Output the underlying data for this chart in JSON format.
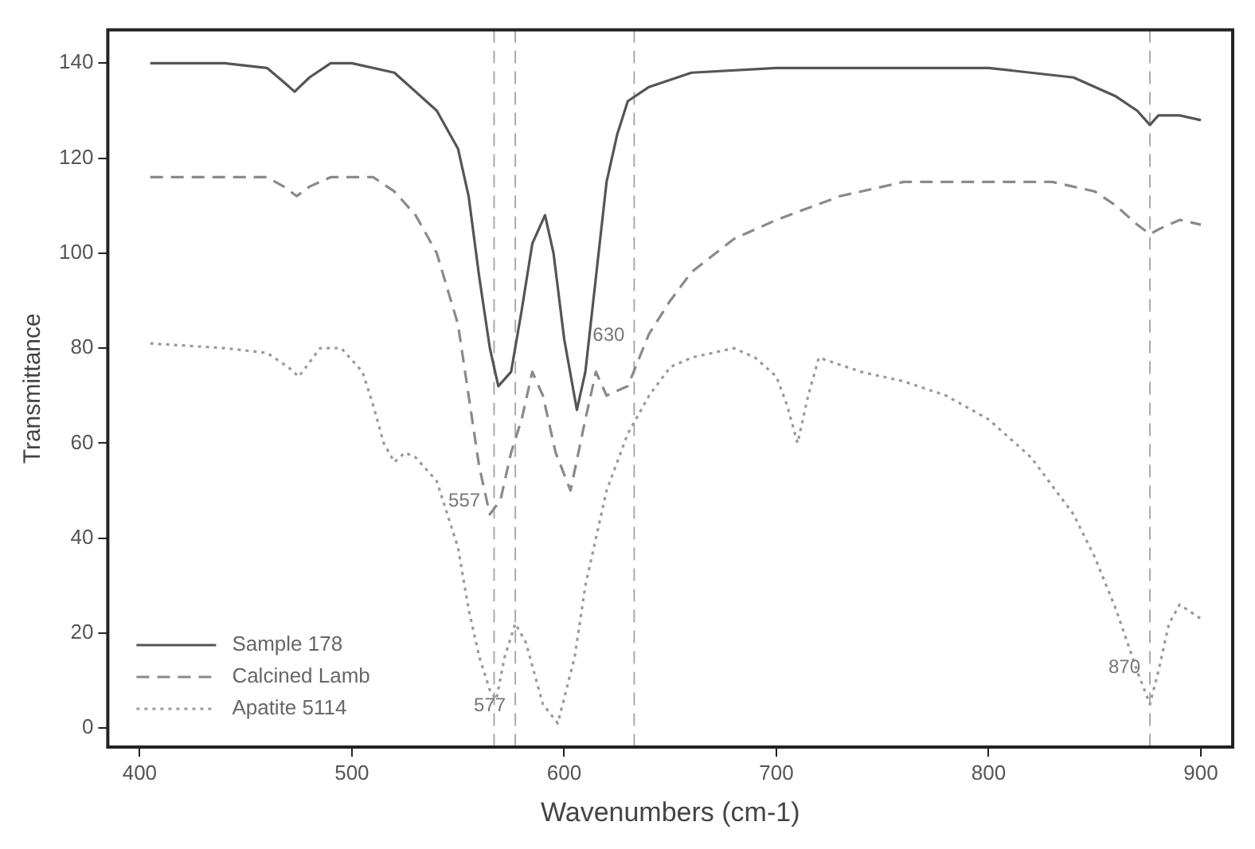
{
  "chart_data": {
    "type": "line",
    "xlabel": "Wavenumbers (cm-1)",
    "ylabel": "Transmittance",
    "xlim": [
      385,
      915
    ],
    "ylim": [
      -4,
      147
    ],
    "xticks": [
      400,
      500,
      600,
      700,
      800,
      900
    ],
    "yticks": [
      0,
      20,
      40,
      60,
      80,
      100,
      120,
      140
    ],
    "legend": "bottom left",
    "marker": "none",
    "grid": false,
    "series": [
      {
        "name": "Sample 178",
        "color": "#555555",
        "line_style": "solid",
        "x": [
          405,
          440,
          460,
          468,
          473,
          480,
          490,
          500,
          520,
          540,
          550,
          555,
          560,
          565,
          569,
          575,
          580,
          585,
          591,
          595,
          600,
          606,
          610,
          615,
          620,
          625,
          630,
          640,
          660,
          700,
          800,
          840,
          860,
          870,
          876,
          880,
          890,
          900
        ],
        "values": [
          140,
          140,
          139,
          136,
          134,
          137,
          140,
          140,
          138,
          130,
          122,
          112,
          95,
          80,
          72,
          75,
          88,
          102,
          108,
          100,
          82,
          67,
          75,
          95,
          115,
          125,
          132,
          135,
          138,
          139,
          139,
          137,
          133,
          130,
          127,
          129,
          129,
          128
        ]
      },
      {
        "name": "Calcined Lamb",
        "color": "#8a8a8a",
        "line_style": "dashed",
        "x": [
          405,
          440,
          460,
          468,
          474,
          480,
          490,
          510,
          520,
          530,
          540,
          550,
          555,
          560,
          565,
          570,
          575,
          580,
          585,
          590,
          596,
          603,
          610,
          615,
          620,
          630,
          640,
          650,
          660,
          680,
          700,
          730,
          760,
          800,
          830,
          850,
          860,
          870,
          876,
          880,
          890,
          900
        ],
        "values": [
          116,
          116,
          116,
          114,
          112,
          114,
          116,
          116,
          113,
          108,
          100,
          85,
          70,
          55,
          45,
          48,
          58,
          65,
          75,
          70,
          58,
          50,
          65,
          75,
          70,
          72,
          83,
          90,
          96,
          103,
          107,
          112,
          115,
          115,
          115,
          113,
          110,
          106,
          104,
          105,
          107,
          106
        ]
      },
      {
        "name": "Apatite 5114",
        "color": "#9a9a9a",
        "line_style": "dotted",
        "x": [
          405,
          440,
          460,
          470,
          475,
          485,
          495,
          505,
          510,
          515,
          520,
          525,
          530,
          540,
          545,
          550,
          555,
          560,
          565,
          568,
          572,
          577,
          582,
          590,
          597,
          605,
          610,
          620,
          630,
          640,
          650,
          660,
          680,
          690,
          700,
          705,
          710,
          715,
          720,
          740,
          760,
          780,
          800,
          820,
          840,
          850,
          860,
          870,
          876,
          880,
          885,
          890,
          900
        ],
        "values": [
          81,
          80,
          79,
          76,
          74,
          80,
          80,
          75,
          68,
          60,
          56,
          58,
          57,
          52,
          45,
          38,
          25,
          15,
          8,
          6,
          15,
          22,
          18,
          5,
          1,
          15,
          30,
          50,
          62,
          70,
          76,
          78,
          80,
          78,
          74,
          68,
          60,
          70,
          78,
          75,
          73,
          70,
          65,
          57,
          45,
          36,
          25,
          12,
          5,
          12,
          22,
          26,
          23
        ]
      }
    ],
    "ref_lines": [
      {
        "axis": "x",
        "value": 567,
        "line_style": "dashed"
      },
      {
        "axis": "x",
        "value": 577,
        "line_style": "dashed"
      },
      {
        "axis": "x",
        "value": 633,
        "line_style": "dashed"
      },
      {
        "axis": "x",
        "value": 876,
        "line_style": "dashed"
      }
    ],
    "annotations": [
      {
        "text": "557",
        "x": 565,
        "y": 45
      },
      {
        "text": "577",
        "x": 577,
        "y": 2
      },
      {
        "text": "630",
        "x": 633,
        "y": 80
      },
      {
        "text": "870",
        "x": 876,
        "y": 10
      }
    ]
  }
}
